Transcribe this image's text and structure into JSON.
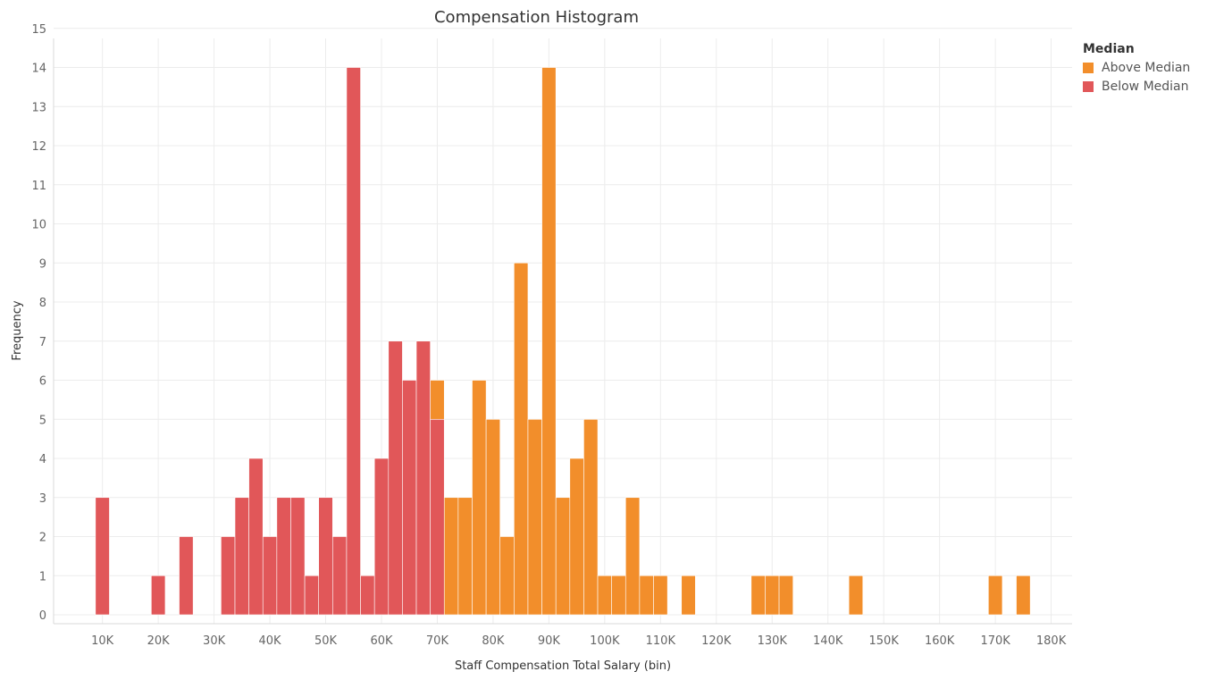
{
  "chart_data": {
    "type": "bar",
    "title": "Compensation Histogram",
    "xlabel": "Staff Compensation Total Salary (bin)",
    "ylabel": "Frequency",
    "bin_width": 2500,
    "xlim": [
      1250,
      183750
    ],
    "ylim": [
      0,
      15
    ],
    "x_ticks": [
      10000,
      20000,
      30000,
      40000,
      50000,
      60000,
      70000,
      80000,
      90000,
      100000,
      110000,
      120000,
      130000,
      140000,
      150000,
      160000,
      170000,
      180000
    ],
    "x_tick_labels": [
      "10K",
      "20K",
      "30K",
      "40K",
      "50K",
      "60K",
      "70K",
      "80K",
      "90K",
      "100K",
      "110K",
      "120K",
      "130K",
      "140K",
      "150K",
      "160K",
      "170K",
      "180K"
    ],
    "y_ticks": [
      0,
      1,
      2,
      3,
      4,
      5,
      6,
      7,
      8,
      9,
      10,
      11,
      12,
      13,
      14,
      15
    ],
    "y_tick_labels": [
      "0",
      "1",
      "2",
      "3",
      "4",
      "5",
      "6",
      "7",
      "8",
      "9",
      "10",
      "11",
      "12",
      "13",
      "14",
      "15"
    ],
    "grid": true,
    "legend": {
      "title": "Median",
      "position": "top-right"
    },
    "series": [
      {
        "name": "Above Median",
        "color": "#f28e2b",
        "bins": [
          {
            "x": 70000,
            "count": 1
          },
          {
            "x": 72500,
            "count": 3
          },
          {
            "x": 75000,
            "count": 3
          },
          {
            "x": 77500,
            "count": 6
          },
          {
            "x": 80000,
            "count": 5
          },
          {
            "x": 82500,
            "count": 2
          },
          {
            "x": 85000,
            "count": 9
          },
          {
            "x": 87500,
            "count": 5
          },
          {
            "x": 90000,
            "count": 14
          },
          {
            "x": 92500,
            "count": 3
          },
          {
            "x": 95000,
            "count": 4
          },
          {
            "x": 97500,
            "count": 5
          },
          {
            "x": 100000,
            "count": 1
          },
          {
            "x": 102500,
            "count": 1
          },
          {
            "x": 105000,
            "count": 3
          },
          {
            "x": 107500,
            "count": 1
          },
          {
            "x": 110000,
            "count": 1
          },
          {
            "x": 115000,
            "count": 1
          },
          {
            "x": 127500,
            "count": 1
          },
          {
            "x": 130000,
            "count": 1
          },
          {
            "x": 132500,
            "count": 1
          },
          {
            "x": 145000,
            "count": 1
          },
          {
            "x": 170000,
            "count": 1
          },
          {
            "x": 175000,
            "count": 1
          }
        ]
      },
      {
        "name": "Below Median",
        "color": "#e15759",
        "bins": [
          {
            "x": 10000,
            "count": 3
          },
          {
            "x": 20000,
            "count": 1
          },
          {
            "x": 25000,
            "count": 2
          },
          {
            "x": 32500,
            "count": 2
          },
          {
            "x": 35000,
            "count": 3
          },
          {
            "x": 37500,
            "count": 4
          },
          {
            "x": 40000,
            "count": 2
          },
          {
            "x": 42500,
            "count": 3
          },
          {
            "x": 45000,
            "count": 3
          },
          {
            "x": 47500,
            "count": 1
          },
          {
            "x": 50000,
            "count": 3
          },
          {
            "x": 52500,
            "count": 2
          },
          {
            "x": 55000,
            "count": 14
          },
          {
            "x": 57500,
            "count": 1
          },
          {
            "x": 60000,
            "count": 4
          },
          {
            "x": 62500,
            "count": 7
          },
          {
            "x": 65000,
            "count": 6
          },
          {
            "x": 67500,
            "count": 7
          },
          {
            "x": 70000,
            "count": 5
          }
        ]
      }
    ]
  }
}
